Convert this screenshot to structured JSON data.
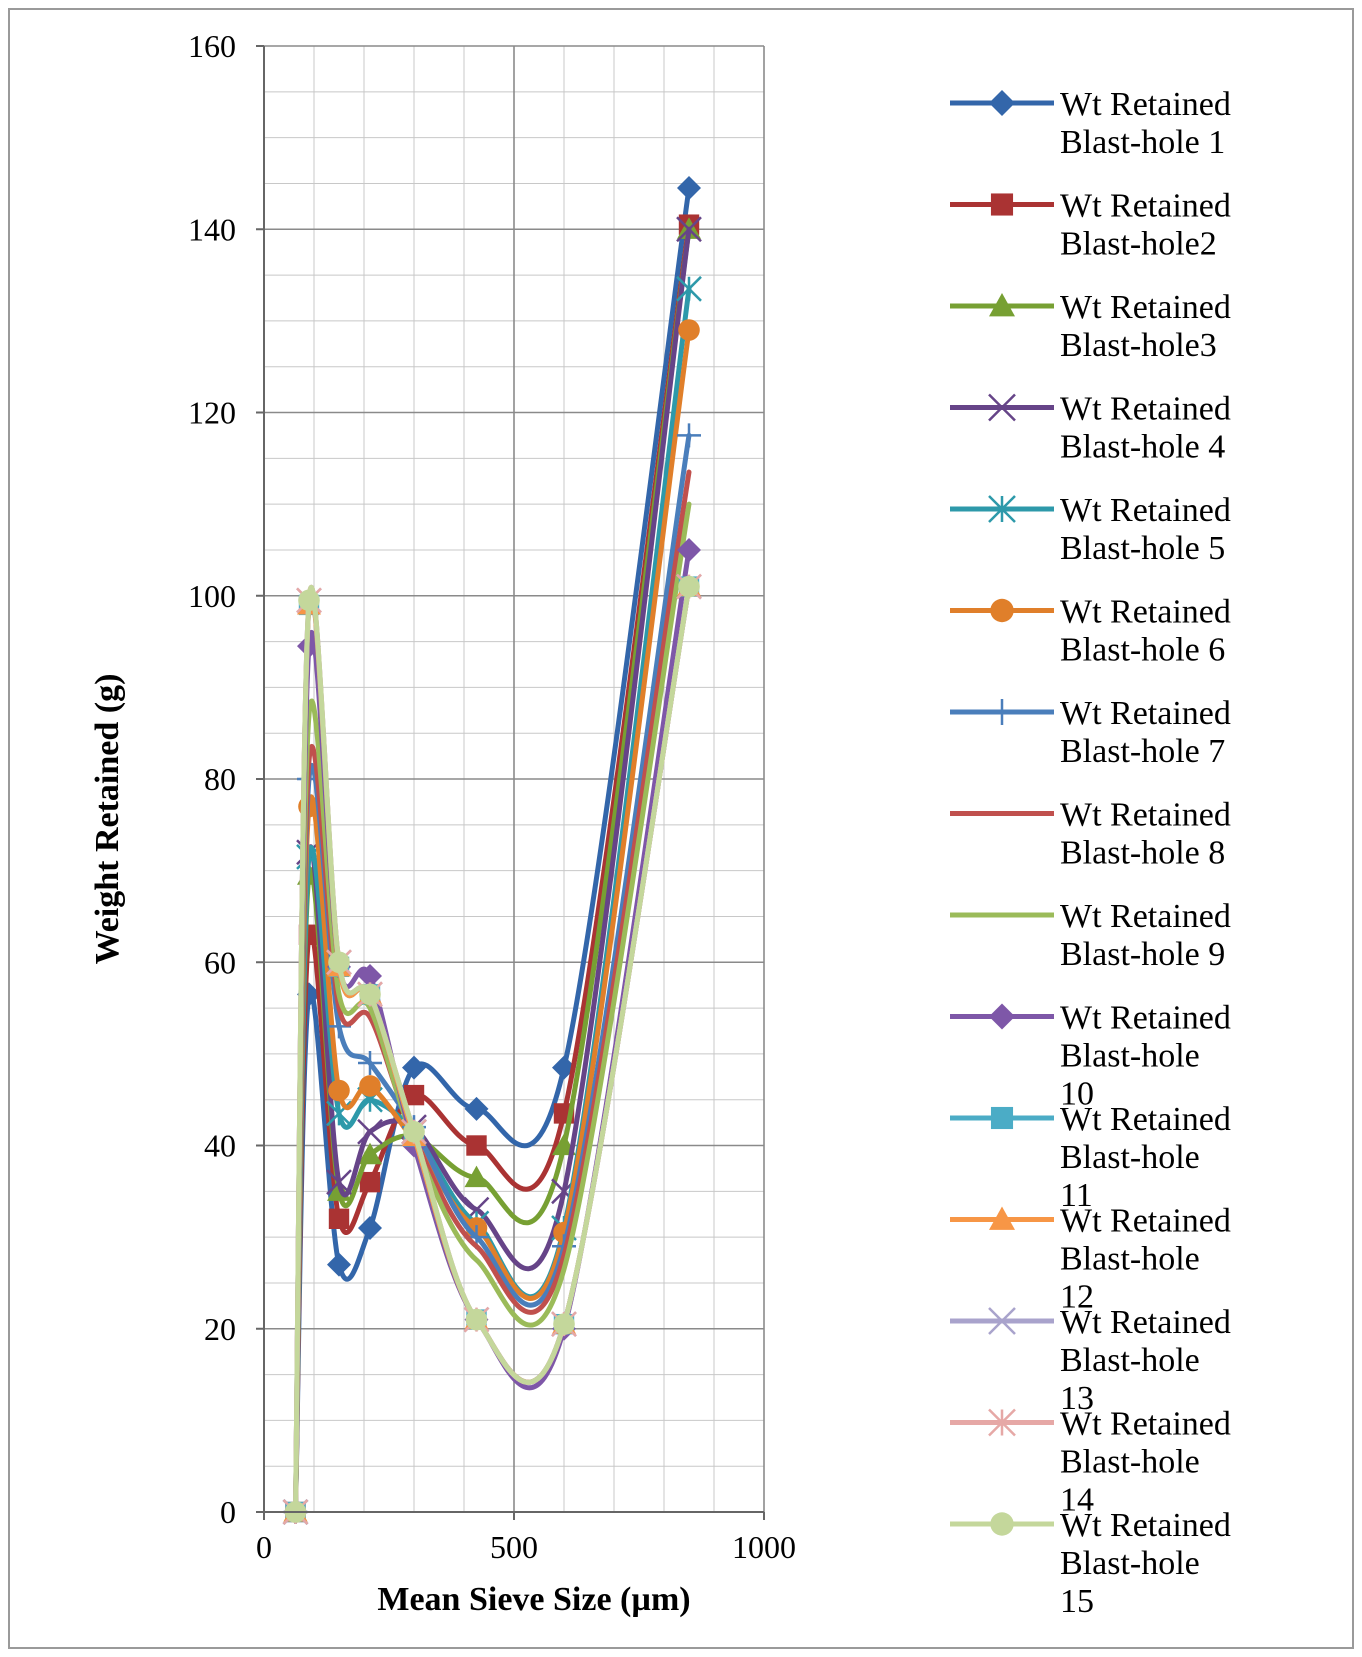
{
  "chart_data": {
    "type": "line",
    "title": "",
    "xlabel": "Mean Sieve Size (µm)",
    "ylabel": "Weight Retained (g)",
    "xlim": [
      0,
      1000
    ],
    "ylim": [
      0,
      160
    ],
    "xticks": [
      0,
      500,
      1000
    ],
    "yticks": [
      0,
      20,
      40,
      60,
      80,
      100,
      120,
      140,
      160
    ],
    "x_minor_step": 100,
    "y_minor_step": 5,
    "grid": true,
    "legend_position": "right",
    "x": [
      63,
      90,
      150,
      212,
      300,
      425,
      600,
      850
    ],
    "series": [
      {
        "name": "Wt Retained Blast-hole 1",
        "color": "#3366aa",
        "marker": "diamond",
        "values": [
          0,
          56.5,
          27,
          31,
          48.5,
          44,
          48.5,
          144.5
        ]
      },
      {
        "name": "Wt Retained Blast-hole2",
        "color": "#aa3333",
        "marker": "square",
        "values": [
          0,
          63,
          32,
          36,
          45.5,
          40,
          43.5,
          140.5
        ]
      },
      {
        "name": "Wt Retained Blast-hole3",
        "color": "#77a033",
        "marker": "triangle",
        "values": [
          0,
          69.5,
          35,
          39,
          41,
          36.5,
          40,
          140
        ]
      },
      {
        "name": "Wt Retained Blast-hole 4",
        "color": "#664488",
        "marker": "x",
        "values": [
          0,
          72,
          36,
          41.5,
          42,
          33,
          35,
          140
        ]
      },
      {
        "name": "Wt Retained Blast-hole 5",
        "color": "#2d99aa",
        "marker": "asterisk",
        "values": [
          0,
          71.5,
          43.5,
          45,
          41.5,
          31.5,
          31,
          133.5
        ]
      },
      {
        "name": "Wt Retained Blast-hole 6",
        "color": "#e07f2a",
        "marker": "circle",
        "values": [
          0,
          77,
          46,
          46.5,
          40.5,
          31,
          30.5,
          129
        ]
      },
      {
        "name": "Wt Retained Blast-hole 7",
        "color": "#4a7ebb",
        "marker": "plus",
        "values": [
          0,
          80,
          53,
          49,
          42,
          30,
          29,
          117.5
        ]
      },
      {
        "name": "Wt Retained Blast-hole 8",
        "color": "#c0504d",
        "marker": "none",
        "values": [
          0,
          82,
          55,
          54,
          41,
          29,
          28,
          113.5
        ]
      },
      {
        "name": "Wt Retained Blast-hole 9",
        "color": "#9bbb59",
        "marker": "none",
        "values": [
          0,
          87,
          56.5,
          55,
          40.5,
          27.5,
          26.5,
          110
        ]
      },
      {
        "name": "Wt Retained Blast-hole 10",
        "color": "#7e57a8",
        "marker": "diamond",
        "values": [
          0,
          94.5,
          59.5,
          58.5,
          40,
          21,
          20,
          105
        ]
      },
      {
        "name": "Wt Retained Blast-hole 11",
        "color": "#4bacc6",
        "marker": "square",
        "values": [
          0,
          99,
          59.5,
          56.5,
          41,
          21,
          20.5,
          101
        ]
      },
      {
        "name": "Wt Retained Blast-hole 12",
        "color": "#f79646",
        "marker": "triangle",
        "values": [
          0,
          99,
          59.5,
          56.5,
          41,
          21,
          20.5,
          101
        ]
      },
      {
        "name": "Wt Retained Blast-hole 13",
        "color": "#a9a3cc",
        "marker": "x",
        "values": [
          0,
          99.5,
          60,
          56.5,
          41.5,
          21,
          20.5,
          101
        ]
      },
      {
        "name": "Wt Retained Blast-hole 14",
        "color": "#e6a8a6",
        "marker": "asterisk",
        "values": [
          0,
          99.5,
          60,
          56.5,
          41.5,
          21,
          20.5,
          101
        ]
      },
      {
        "name": "Wt Retained Blast-hole 15",
        "color": "#c4d79b",
        "marker": "circle",
        "values": [
          0,
          99.5,
          60,
          56.5,
          41.5,
          21,
          20.5,
          101
        ]
      }
    ],
    "legend_lines": [
      [
        "Wt Retained",
        "Blast-hole 1"
      ],
      [
        "Wt Retained",
        "Blast-hole2"
      ],
      [
        "Wt Retained",
        "Blast-hole3"
      ],
      [
        "Wt Retained",
        "Blast-hole 4"
      ],
      [
        "Wt Retained",
        "Blast-hole 5"
      ],
      [
        "Wt Retained",
        "Blast-hole 6"
      ],
      [
        "Wt Retained",
        "Blast-hole 7"
      ],
      [
        "Wt Retained",
        "Blast-hole 8"
      ],
      [
        "Wt Retained",
        "Blast-hole 9"
      ],
      [
        "Wt Retained",
        "Blast-hole",
        "10"
      ],
      [
        "Wt Retained",
        "Blast-hole",
        "11"
      ],
      [
        "Wt Retained",
        "Blast-hole",
        "12"
      ],
      [
        "Wt Retained",
        "Blast-hole",
        "13"
      ],
      [
        "Wt Retained",
        "Blast-hole",
        "14"
      ],
      [
        "Wt Retained",
        "Blast-hole",
        "15"
      ]
    ]
  }
}
